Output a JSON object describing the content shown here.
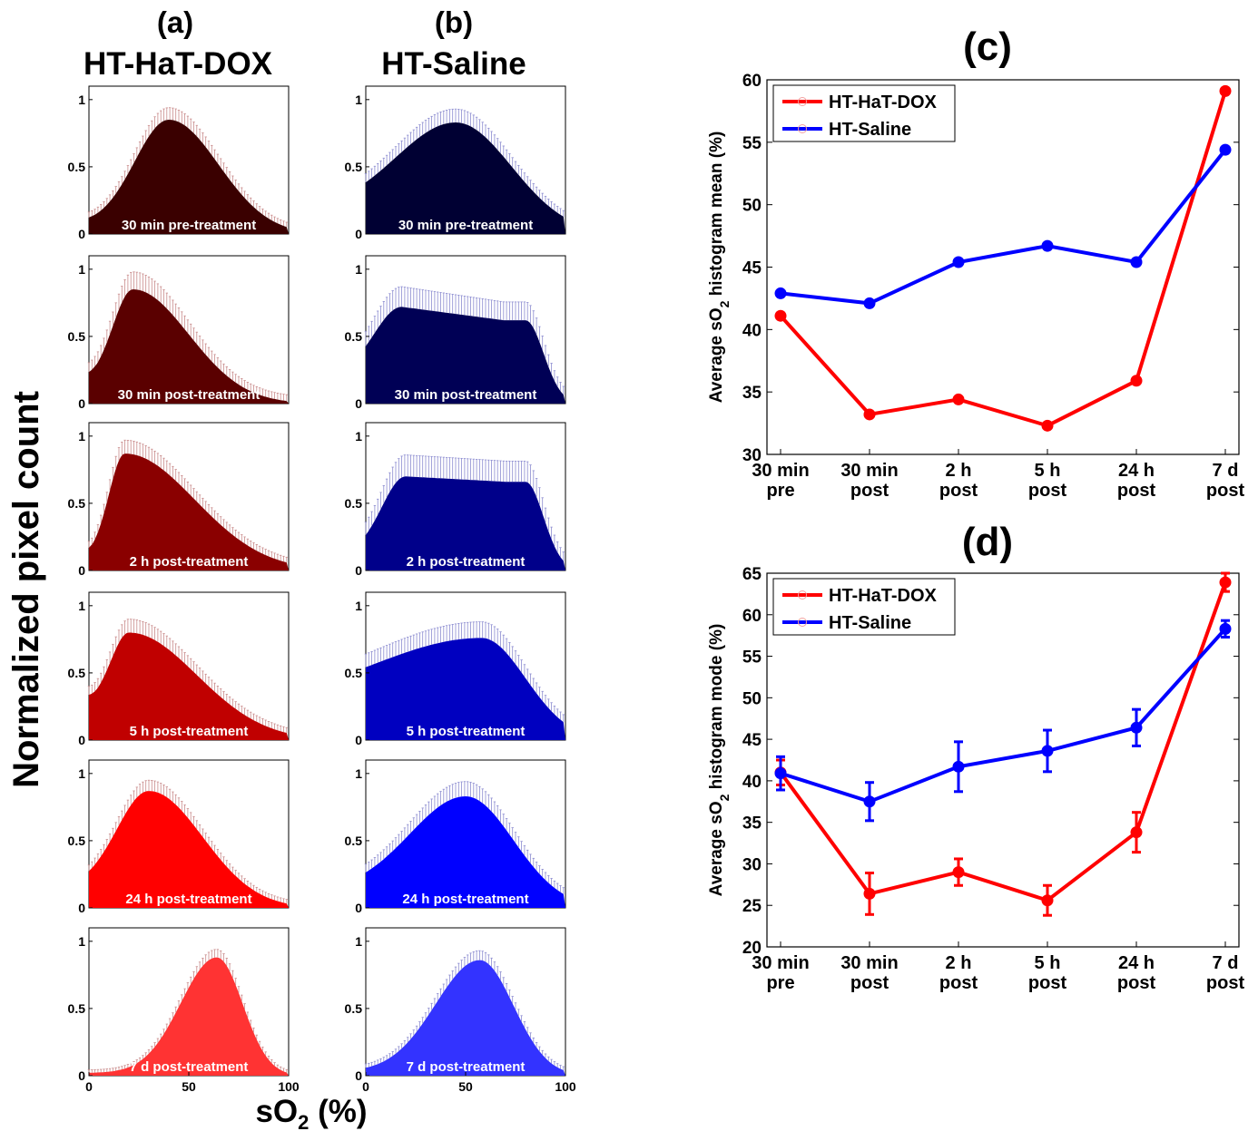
{
  "panels": {
    "a": {
      "letter": "(a)",
      "title": "HT-HaT-DOX"
    },
    "b": {
      "letter": "(b)",
      "title": "HT-Saline"
    },
    "c": {
      "letter": "(c)"
    },
    "d": {
      "letter": "(d)"
    }
  },
  "shared_ylabel": "Normalized pixel count",
  "shared_xlabel": {
    "main": "sO",
    "sub": "2",
    "unit": " (%)"
  },
  "chart_data": [
    {
      "type": "area",
      "group": "HT-HaT-DOX",
      "xlim": [
        0,
        100
      ],
      "ylim": [
        0,
        1.1
      ],
      "xticks": [
        "0",
        "50",
        "100"
      ],
      "yticks": [
        "0",
        "0.5",
        "1"
      ],
      "error_bars": true,
      "histograms": [
        {
          "label": "30 min pre-treatment",
          "color": "#3a0000",
          "peak_x": 40,
          "peak_y": 0.85,
          "err": 0.09,
          "sigma_l": 17,
          "sigma_r": 25,
          "start_y": 0.07,
          "end_x": 100
        },
        {
          "label": "30 min post-treatment",
          "color": "#5a0000",
          "peak_x": 22,
          "peak_y": 0.85,
          "err": 0.13,
          "sigma_l": 10,
          "sigma_r": 28,
          "start_y": 0.16,
          "end_x": 100
        },
        {
          "label": "2 h post-treatment",
          "color": "#8a0000",
          "peak_x": 18,
          "peak_y": 0.87,
          "err": 0.1,
          "sigma_l": 8,
          "sigma_r": 35,
          "start_y": 0.1,
          "end_x": 100
        },
        {
          "label": "5 h post-treatment",
          "color": "#c00000",
          "peak_x": 20,
          "peak_y": 0.8,
          "err": 0.1,
          "sigma_l": 9,
          "sigma_r": 34,
          "start_y": 0.27,
          "end_x": 100
        },
        {
          "label": "24 h post-treatment",
          "color": "#ff0000",
          "peak_x": 30,
          "peak_y": 0.87,
          "err": 0.08,
          "sigma_l": 16,
          "sigma_r": 27,
          "start_y": 0.15,
          "end_x": 100
        },
        {
          "label": "7 d post-treatment",
          "color": "#ff3333",
          "peak_x": 64,
          "peak_y": 0.88,
          "err": 0.06,
          "sigma_l": 18,
          "sigma_r": 13,
          "start_y": 0.02,
          "end_x": 100
        }
      ]
    },
    {
      "type": "area",
      "group": "HT-Saline",
      "xlim": [
        0,
        100
      ],
      "ylim": [
        0,
        1.1
      ],
      "xticks": [
        "0",
        "50",
        "100"
      ],
      "yticks": [
        "0",
        "0.5",
        "1"
      ],
      "error_bars": true,
      "histograms": [
        {
          "label": "30 min pre-treatment",
          "color": "#000033",
          "peak_x": 45,
          "peak_y": 0.83,
          "err": 0.1,
          "sigma_l": 30,
          "sigma_r": 28,
          "start_y": 0.17,
          "end_x": 100
        },
        {
          "label": "30 min post-treatment",
          "color": "#000055",
          "peak_x": 18,
          "peak_y": 0.72,
          "err": 0.15,
          "sigma_l": 14,
          "sigma_r": 40,
          "start_y": 0.2,
          "end_x": 100,
          "plateau": 0.62
        },
        {
          "label": "2 h post-treatment",
          "color": "#00008a",
          "peak_x": 20,
          "peak_y": 0.7,
          "err": 0.16,
          "sigma_l": 12,
          "sigma_r": 40,
          "start_y": 0.12,
          "end_x": 100,
          "plateau": 0.66
        },
        {
          "label": "5 h post-treatment",
          "color": "#0000c0",
          "peak_x": 58,
          "peak_y": 0.76,
          "err": 0.12,
          "sigma_l": 55,
          "sigma_r": 22,
          "start_y": 0.25,
          "end_x": 100
        },
        {
          "label": "24 h post-treatment",
          "color": "#0000ff",
          "peak_x": 50,
          "peak_y": 0.83,
          "err": 0.11,
          "sigma_l": 28,
          "sigma_r": 24,
          "start_y": 0.12,
          "end_x": 100
        },
        {
          "label": "7 d post-treatment",
          "color": "#3333ff",
          "peak_x": 57,
          "peak_y": 0.86,
          "err": 0.07,
          "sigma_l": 22,
          "sigma_r": 17,
          "start_y": 0.03,
          "end_x": 100
        }
      ]
    },
    {
      "type": "line",
      "categories": [
        [
          "30 min",
          "pre"
        ],
        [
          "30 min",
          "post"
        ],
        [
          "2 h",
          "post"
        ],
        [
          "5 h",
          "post"
        ],
        [
          "24 h",
          "post"
        ],
        [
          "7 d",
          "post"
        ]
      ],
      "ylabel": {
        "pre": "Average sO",
        "sub": "2",
        "post": " histogram mean (%)"
      },
      "ylim": [
        30,
        60
      ],
      "yticks": [
        30,
        35,
        40,
        45,
        50,
        55,
        60
      ],
      "legend_position": "top-left",
      "series": [
        {
          "name": "HT-HaT-DOX",
          "color": "#ff0000",
          "values": [
            41.1,
            33.2,
            34.4,
            32.3,
            35.9,
            59.1
          ]
        },
        {
          "name": "HT-Saline",
          "color": "#0000ff",
          "values": [
            42.9,
            42.1,
            45.4,
            46.7,
            45.4,
            54.4
          ]
        }
      ]
    },
    {
      "type": "line",
      "categories": [
        [
          "30 min",
          "pre"
        ],
        [
          "30 min",
          "post"
        ],
        [
          "2 h",
          "post"
        ],
        [
          "5 h",
          "post"
        ],
        [
          "24 h",
          "post"
        ],
        [
          "7 d",
          "post"
        ]
      ],
      "ylabel": {
        "pre": "Average sO",
        "sub": "2",
        "post": " histogram mode (%)"
      },
      "ylim": [
        20,
        65
      ],
      "yticks": [
        20,
        25,
        30,
        35,
        40,
        45,
        50,
        55,
        60,
        65
      ],
      "legend_position": "top-left",
      "series": [
        {
          "name": "HT-HaT-DOX",
          "color": "#ff0000",
          "values": [
            41.0,
            26.4,
            29.0,
            25.6,
            33.8,
            63.9
          ],
          "errors": [
            1.5,
            2.5,
            1.6,
            1.8,
            2.4,
            1.1
          ]
        },
        {
          "name": "HT-Saline",
          "color": "#0000ff",
          "values": [
            40.9,
            37.5,
            41.7,
            43.6,
            46.4,
            58.3
          ],
          "errors": [
            2.0,
            2.3,
            3.0,
            2.5,
            2.2,
            1.0
          ]
        }
      ]
    }
  ]
}
